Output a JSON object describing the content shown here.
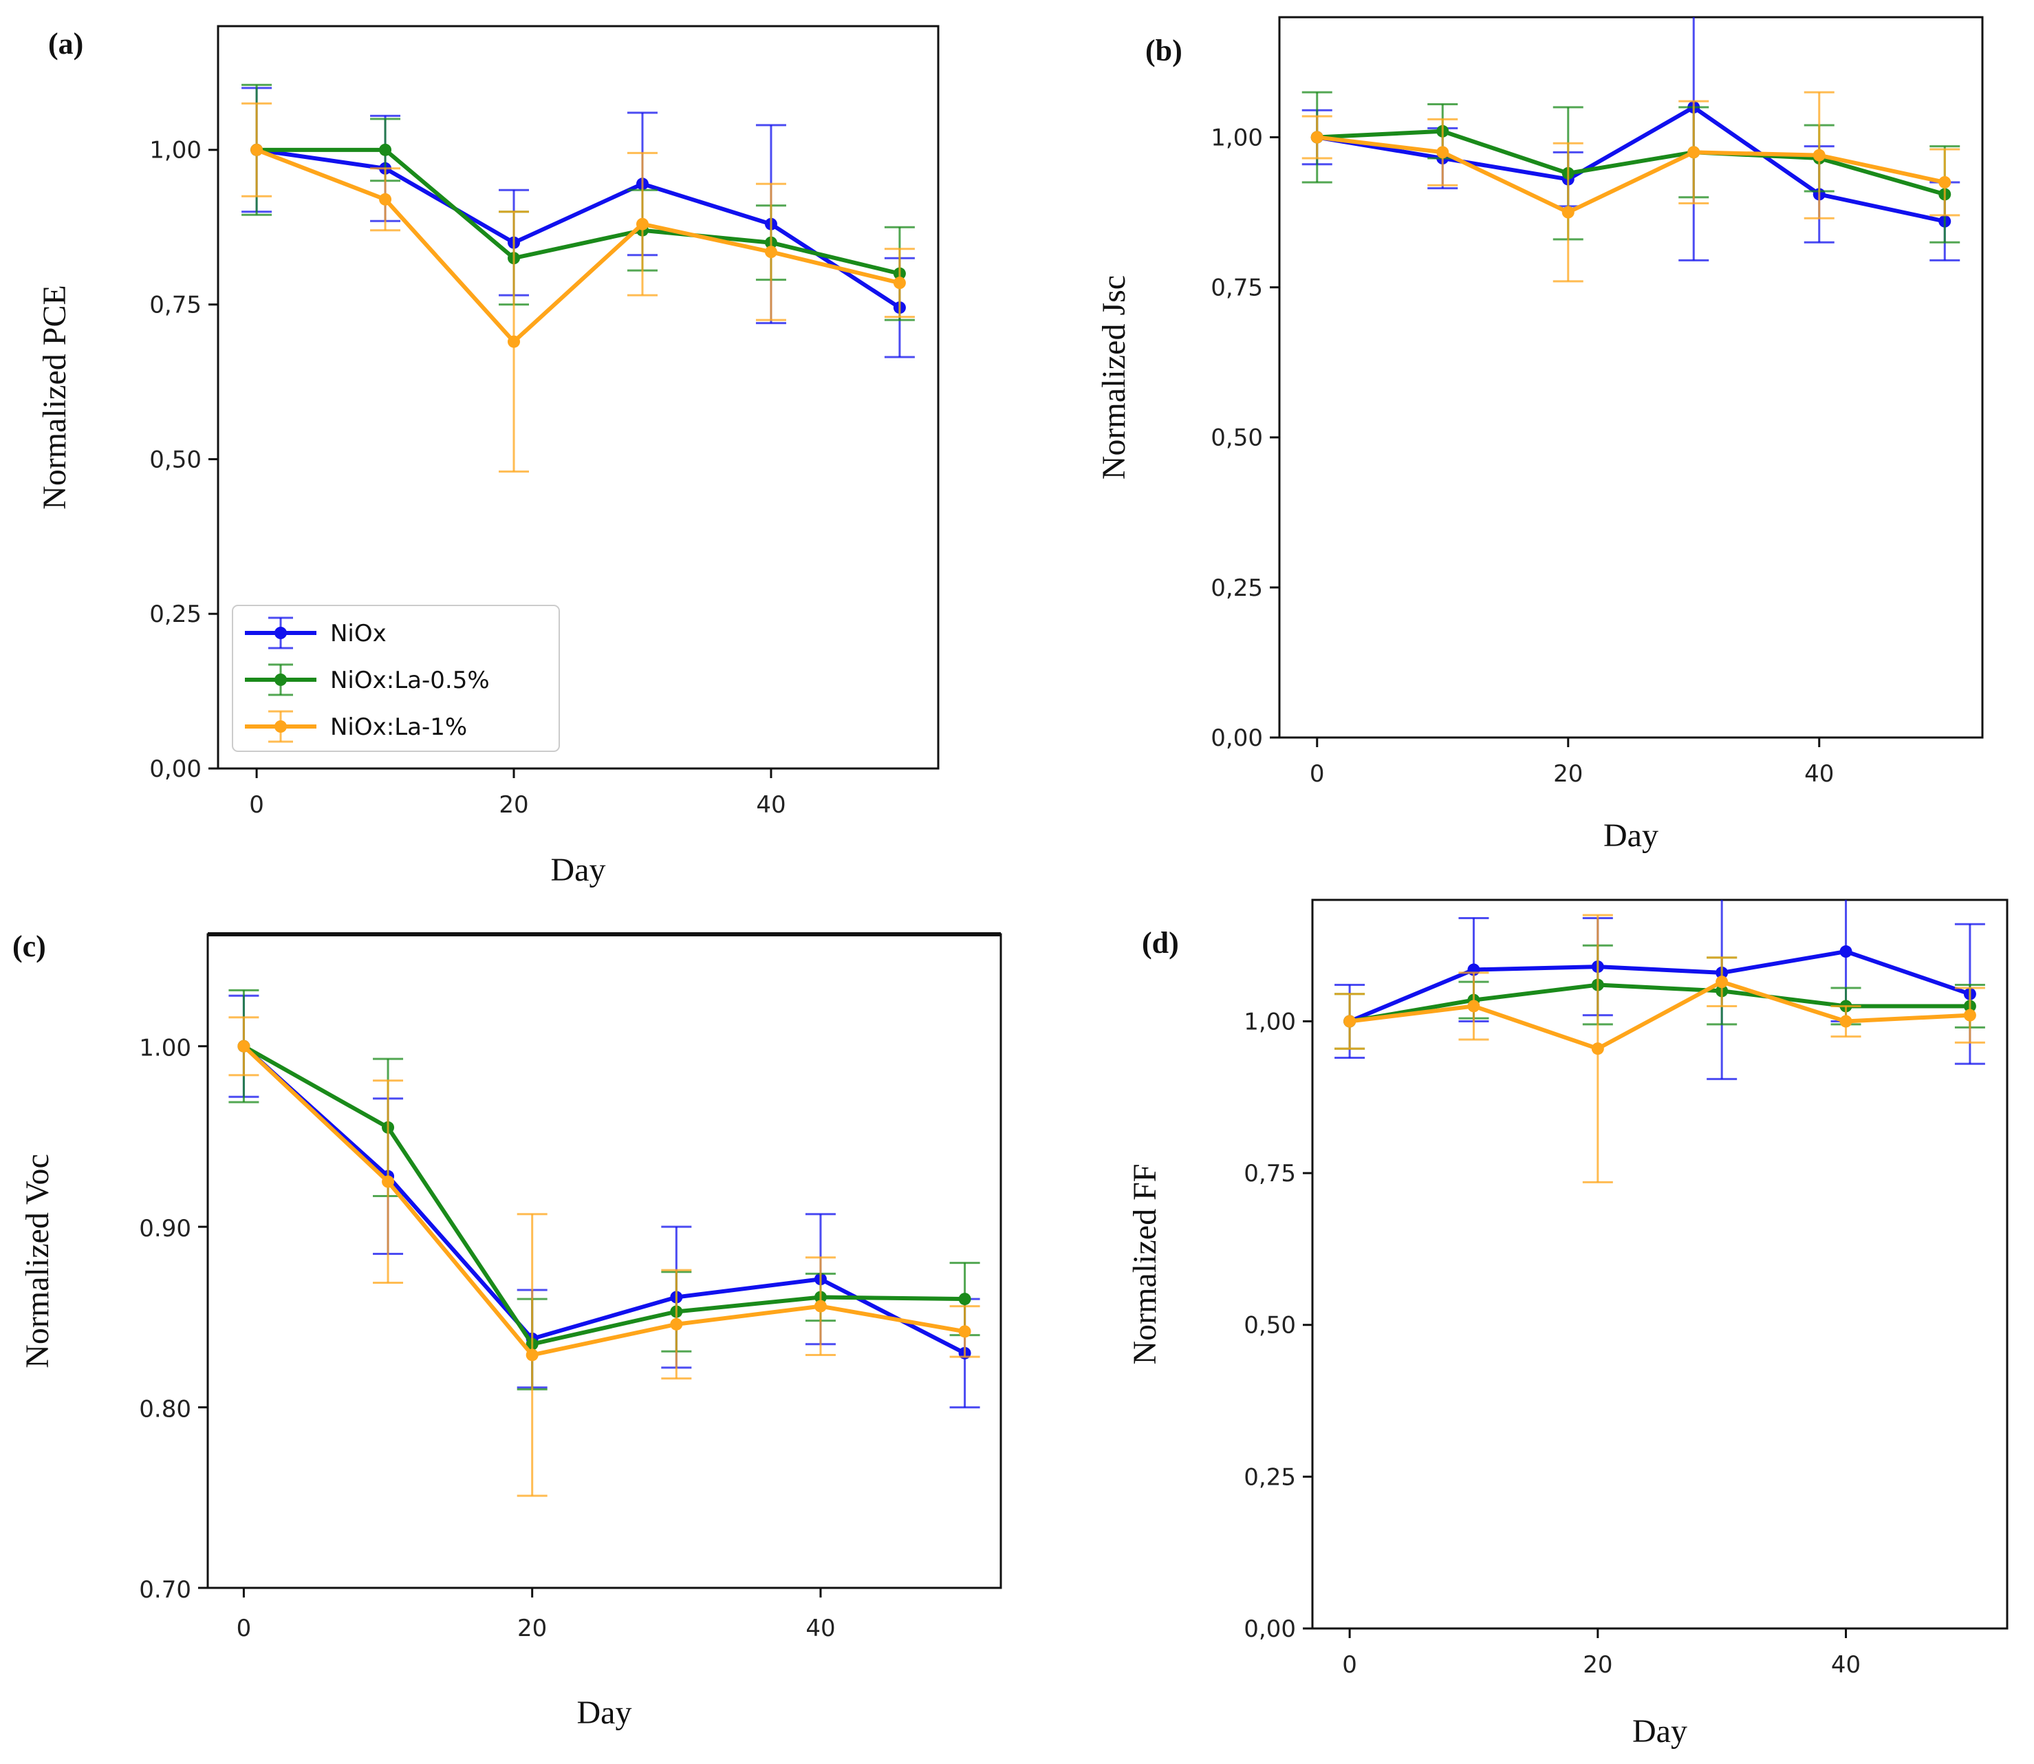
{
  "chart_data": [
    {
      "type": "line",
      "title": "(a)",
      "xlabel": "Day",
      "ylabel": "Normalized PCE",
      "xlim": [
        -3,
        53
      ],
      "ylim": [
        0,
        1.2
      ],
      "xticks": [
        "0",
        "20",
        "40"
      ],
      "xtick_values": [
        0,
        20,
        40
      ],
      "yticks": [
        "0,00",
        "0,25",
        "0,50",
        "0,75",
        "1,00"
      ],
      "ytick_values": [
        0,
        0.25,
        0.5,
        0.75,
        1.0
      ],
      "x": [
        0,
        10,
        20,
        30,
        40,
        50
      ],
      "legend": "lower-left",
      "series": [
        {
          "name": "NiOx",
          "color": "#1010ee",
          "values": [
            1.0,
            0.97,
            0.85,
            0.945,
            0.88,
            0.745
          ],
          "err": [
            0.1,
            0.085,
            0.085,
            0.115,
            0.16,
            0.08
          ]
        },
        {
          "name": "NiOx:La-0.5%",
          "color": "#1a8a1a",
          "values": [
            1.0,
            1.0,
            0.825,
            0.87,
            0.85,
            0.8
          ],
          "err": [
            0.105,
            0.05,
            0.075,
            0.065,
            0.06,
            0.075
          ]
        },
        {
          "name": "NiOx:La-1%",
          "color": "#ffa51a",
          "values": [
            1.0,
            0.92,
            0.69,
            0.88,
            0.835,
            0.785
          ],
          "err": [
            0.075,
            0.05,
            0.21,
            0.115,
            0.11,
            0.055
          ]
        }
      ]
    },
    {
      "type": "line",
      "title": "(b)",
      "xlabel": "Day",
      "ylabel": "Normalized Jsc",
      "xlim": [
        -3,
        53
      ],
      "ylim": [
        0,
        1.2
      ],
      "xticks": [
        "0",
        "20",
        "40"
      ],
      "xtick_values": [
        0,
        20,
        40
      ],
      "yticks": [
        "0,00",
        "0,25",
        "0,50",
        "0,75",
        "1,00"
      ],
      "ytick_values": [
        0,
        0.25,
        0.5,
        0.75,
        1.0
      ],
      "x": [
        0,
        10,
        20,
        30,
        40,
        50
      ],
      "legend": "",
      "series": [
        {
          "name": "NiOx",
          "color": "#1010ee",
          "values": [
            1.0,
            0.965,
            0.93,
            1.05,
            0.905,
            0.86
          ],
          "err": [
            0.045,
            0.05,
            0.045,
            0.255,
            0.08,
            0.065
          ]
        },
        {
          "name": "NiOx:La-0.5%",
          "color": "#1a8a1a",
          "values": [
            1.0,
            1.01,
            0.94,
            0.975,
            0.965,
            0.905
          ],
          "err": [
            0.075,
            0.045,
            0.11,
            0.075,
            0.055,
            0.08
          ]
        },
        {
          "name": "NiOx:La-1%",
          "color": "#ffa51a",
          "values": [
            1.0,
            0.975,
            0.875,
            0.975,
            0.97,
            0.925
          ],
          "err": [
            0.035,
            0.055,
            0.115,
            0.085,
            0.105,
            0.055
          ]
        }
      ]
    },
    {
      "type": "line",
      "title": "(c)",
      "xlabel": "Day",
      "ylabel": "Normalized Voc",
      "xlim": [
        -2.5,
        52.5
      ],
      "ylim": [
        0.7,
        1.062
      ],
      "xticks": [
        "0",
        "20",
        "40"
      ],
      "xtick_values": [
        0,
        20,
        40
      ],
      "yticks": [
        "0.70",
        "0.80",
        "0.90",
        "1.00"
      ],
      "ytick_values": [
        0.7,
        0.8,
        0.9,
        1.0
      ],
      "x": [
        0,
        10,
        20,
        30,
        40,
        50
      ],
      "legend": "",
      "series": [
        {
          "name": "NiOx",
          "color": "#1010ee",
          "values": [
            1.0,
            0.928,
            0.838,
            0.861,
            0.871,
            0.83
          ],
          "err": [
            0.028,
            0.043,
            0.027,
            0.039,
            0.036,
            0.03
          ]
        },
        {
          "name": "NiOx:La-0.5%",
          "color": "#1a8a1a",
          "values": [
            1.0,
            0.955,
            0.835,
            0.853,
            0.861,
            0.86
          ],
          "err": [
            0.031,
            0.038,
            0.025,
            0.022,
            0.013,
            0.02
          ]
        },
        {
          "name": "NiOx:La-1%",
          "color": "#ffa51a",
          "values": [
            1.0,
            0.925,
            0.829,
            0.846,
            0.856,
            0.842
          ],
          "err": [
            0.016,
            0.056,
            0.078,
            0.03,
            0.027,
            0.014
          ]
        }
      ]
    },
    {
      "type": "line",
      "title": "(d)",
      "xlabel": "Day",
      "ylabel": "Normalized FF",
      "xlim": [
        -3,
        53
      ],
      "ylim": [
        0,
        1.2
      ],
      "xticks": [
        "0",
        "20",
        "40"
      ],
      "xtick_values": [
        0,
        20,
        40
      ],
      "yticks": [
        "0,00",
        "0,25",
        "0,50",
        "0,75",
        "1,00"
      ],
      "ytick_values": [
        0,
        0.25,
        0.5,
        0.75,
        1.0
      ],
      "x": [
        0,
        10,
        20,
        30,
        40,
        50
      ],
      "legend": "",
      "series": [
        {
          "name": "NiOx",
          "color": "#1010ee",
          "values": [
            1.0,
            1.085,
            1.09,
            1.08,
            1.115,
            1.045
          ],
          "err": [
            0.06,
            0.085,
            0.08,
            0.175,
            0.115,
            0.115
          ]
        },
        {
          "name": "NiOx:La-0.5%",
          "color": "#1a8a1a",
          "values": [
            1.0,
            1.035,
            1.06,
            1.05,
            1.025,
            1.025
          ],
          "err": [
            0.045,
            0.03,
            0.065,
            0.055,
            0.03,
            0.035
          ]
        },
        {
          "name": "NiOx:La-1%",
          "color": "#ffa51a",
          "values": [
            1.0,
            1.025,
            0.955,
            1.065,
            1.0,
            1.01
          ],
          "err": [
            0.045,
            0.055,
            0.22,
            0.04,
            0.025,
            0.045
          ]
        }
      ]
    }
  ]
}
